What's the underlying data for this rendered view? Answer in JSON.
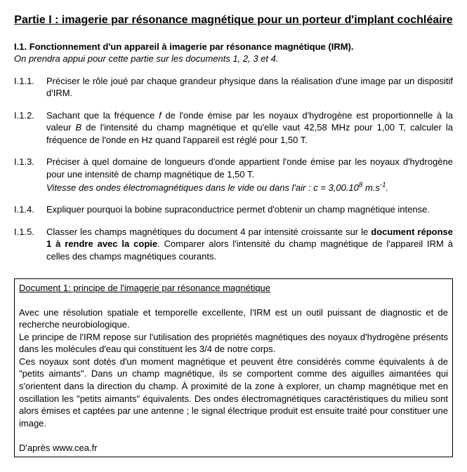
{
  "title": "Partie I : imagerie par résonance magnétique pour un porteur d'implant cochléaire",
  "sec": {
    "num": "I.1. ",
    "head": "Fonctionnement d'un appareil à imagerie par résonance magnétique (IRM).",
    "note": "On prendra appui pour cette partie sur les documents 1, 2, 3 et 4."
  },
  "q": {
    "n1": "I.1.1.",
    "t1": "Préciser le rôle joué par chaque grandeur physique dans la réalisation d'une image par un dispositif d'IRM.",
    "n2": "I.1.2.",
    "t2a": "Sachant que la fréquence ",
    "t2f": "f",
    "t2b": " de l'onde émise par les noyaux d'hydrogène est proportionnelle à la valeur ",
    "t2B": "B",
    "t2c": " de l'intensité du champ magnétique et qu'elle vaut 42,58 MHz pour 1,00 T, calculer la fréquence de l'onde en Hz quand l'appareil est réglé pour 1,50 T.",
    "n3": "I.1.3.",
    "t3a": "Préciser à quel domaine de longueurs d'onde appartient l'onde émise par les noyaux d'hydrogène pour une intensité de champ magnétique de 1,50 T.",
    "t3b_pre": "Vitesse des ondes électromagnétiques dans le vide ou dans l'air : c = 3,00.10",
    "t3b_exp": "8",
    "t3b_post": " m.s",
    "t3b_exp2": "-1",
    "t3b_end": ".",
    "n4": "I.1.4.",
    "t4": "Expliquer pourquoi la bobine supraconductrice permet d'obtenir un champ magnétique intense.",
    "n5": "I.1.5.",
    "t5a": "Classer les champs magnétiques du document 4 par intensité croissante sur le ",
    "t5b": "document réponse 1 à rendre avec la copie",
    "t5c": ". Comparer alors l'intensité du champ magnétique de l'appareil IRM à celles des champs magnétiques courants."
  },
  "doc": {
    "title": "Document 1: principe de l'imagerie par résonance magnétique",
    "p1": "Avec une résolution spatiale et temporelle excellente, l'IRM est un outil puissant de diagnostic et de recherche neurobiologique.",
    "p2": "Le principe de l'IRM repose sur l'utilisation des propriétés magnétiques des noyaux d'hydrogène présents dans les molécules d'eau qui constituent les 3/4 de notre corps.",
    "p3": "Ces noyaux sont dotés d'un moment magnétique et peuvent être considérés comme équivalents à de \"petits aimants\". Dans un champ magnétique, ils se comportent comme des aiguilles aimantées qui s'orientent dans la direction du champ. À proximité de la zone à explorer, un champ magnétique met en oscillation les \"petits aimants\" équivalents. Des ondes électromagnétiques caractéristiques du milieu sont alors émises et captées par une antenne ; le signal électrique produit est ensuite traité pour constituer une image.",
    "src": "D'après www.cea.fr"
  }
}
